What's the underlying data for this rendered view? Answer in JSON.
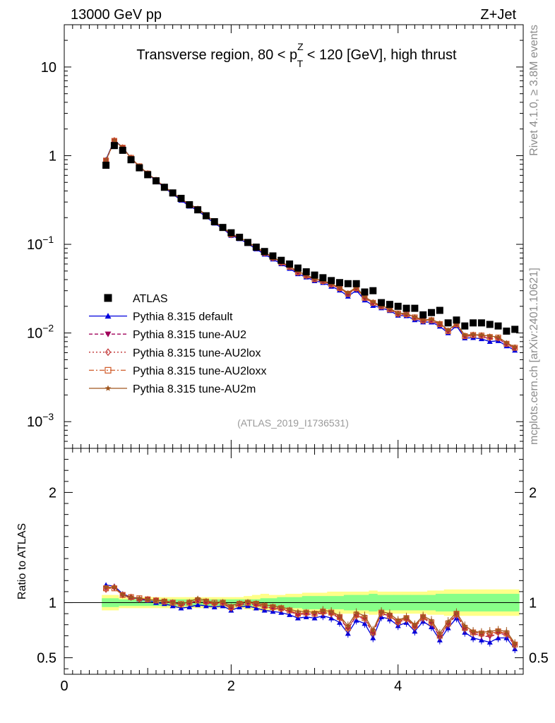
{
  "header": {
    "left": "13000 GeV pp",
    "right": "Z+Jet"
  },
  "side": {
    "rivet": "Rivet 4.1.0, ≥ 3.8M events",
    "mcplots": "mcplots.cern.ch [arXiv:2401.10621]"
  },
  "chart_data": [
    {
      "type": "scatter",
      "panel": "main",
      "title": "Transverse region, 80 < pT^Z < 120 [GeV], high thrust",
      "title_parts": {
        "a": "Transverse region, 80 < p",
        "sup": "Z",
        "sub": "T",
        "b": " < 120 [GeV], high thrust"
      },
      "watermark": "(ATLAS_2019_I1736531)",
      "yscale": "log",
      "ylim": [
        0.0005,
        30
      ],
      "xlim": [
        0,
        5.5
      ],
      "ytick_labels": [
        {
          "v": 10,
          "base": "10",
          "exp": ""
        },
        {
          "v": 1,
          "base": "1",
          "exp": ""
        },
        {
          "v": 0.1,
          "base": "10",
          "exp": "−1"
        },
        {
          "v": 0.01,
          "base": "10",
          "exp": "−2"
        },
        {
          "v": 0.001,
          "base": "10",
          "exp": "−3"
        }
      ],
      "x": [
        0.5,
        0.6,
        0.7,
        0.8,
        0.9,
        1.0,
        1.1,
        1.2,
        1.3,
        1.4,
        1.5,
        1.6,
        1.7,
        1.8,
        1.9,
        2.0,
        2.1,
        2.2,
        2.3,
        2.4,
        2.5,
        2.6,
        2.7,
        2.8,
        2.9,
        3.0,
        3.1,
        3.2,
        3.3,
        3.4,
        3.5,
        3.6,
        3.7,
        3.8,
        3.9,
        4.0,
        4.1,
        4.2,
        4.3,
        4.4,
        4.5,
        4.6,
        4.7,
        4.8,
        4.9,
        5.0,
        5.1,
        5.2,
        5.3,
        5.4
      ],
      "series": [
        {
          "name": "ATLAS",
          "marker": "square",
          "color": "#000000",
          "values": [
            0.78,
            1.3,
            1.15,
            0.9,
            0.73,
            0.61,
            0.52,
            0.44,
            0.38,
            0.33,
            0.28,
            0.245,
            0.21,
            0.18,
            0.155,
            0.135,
            0.12,
            0.105,
            0.093,
            0.083,
            0.074,
            0.066,
            0.06,
            0.054,
            0.049,
            0.045,
            0.042,
            0.039,
            0.037,
            0.036,
            0.036,
            0.029,
            0.03,
            0.022,
            0.021,
            0.02,
            0.019,
            0.019,
            0.016,
            0.017,
            0.018,
            0.013,
            0.014,
            0.012,
            0.013,
            0.013,
            0.0125,
            0.012,
            0.0105,
            0.011
          ]
        },
        {
          "name": "Pythia 8.315 default",
          "marker": "triangle-up",
          "color": "#0000dd",
          "linestyle": "solid",
          "ratio": [
            1.16,
            1.15,
            1.08,
            1.05,
            1.03,
            1.02,
            1.0,
            0.99,
            0.97,
            0.95,
            0.96,
            0.98,
            0.97,
            0.96,
            0.97,
            0.93,
            0.96,
            0.97,
            0.95,
            0.93,
            0.92,
            0.91,
            0.89,
            0.86,
            0.87,
            0.86,
            0.88,
            0.86,
            0.82,
            0.72,
            0.84,
            0.81,
            0.68,
            0.87,
            0.85,
            0.79,
            0.82,
            0.74,
            0.83,
            0.78,
            0.66,
            0.77,
            0.86,
            0.73,
            0.68,
            0.66,
            0.64,
            0.68,
            0.68,
            0.58
          ]
        },
        {
          "name": "Pythia 8.315 tune-AU2",
          "marker": "triangle-down",
          "color": "#a0005a",
          "linestyle": "dashed",
          "ratio": [
            1.13,
            1.13,
            1.07,
            1.04,
            1.03,
            1.03,
            1.02,
            1.01,
            1.0,
            0.98,
            0.99,
            1.02,
            1.0,
            0.99,
            0.99,
            0.95,
            0.98,
            0.99,
            0.98,
            0.96,
            0.95,
            0.94,
            0.92,
            0.89,
            0.9,
            0.89,
            0.91,
            0.9,
            0.86,
            0.76,
            0.88,
            0.85,
            0.72,
            0.9,
            0.88,
            0.82,
            0.85,
            0.78,
            0.86,
            0.81,
            0.69,
            0.8,
            0.89,
            0.76,
            0.72,
            0.7,
            0.69,
            0.72,
            0.71,
            0.61
          ]
        },
        {
          "name": "Pythia 8.315 tune-AU2lox",
          "marker": "diamond-open",
          "color": "#c03030",
          "linestyle": "dotted",
          "ratio": [
            1.12,
            1.14,
            1.07,
            1.05,
            1.03,
            1.03,
            1.02,
            1.01,
            1.0,
            0.98,
            1.0,
            1.02,
            1.0,
            0.99,
            1.0,
            0.95,
            0.99,
            1.0,
            0.98,
            0.96,
            0.95,
            0.94,
            0.93,
            0.89,
            0.9,
            0.9,
            0.91,
            0.9,
            0.86,
            0.77,
            0.88,
            0.86,
            0.73,
            0.91,
            0.88,
            0.82,
            0.85,
            0.78,
            0.86,
            0.82,
            0.7,
            0.81,
            0.89,
            0.77,
            0.73,
            0.72,
            0.72,
            0.73,
            0.72,
            0.62
          ]
        },
        {
          "name": "Pythia 8.315 tune-AU2loxx",
          "marker": "square-open",
          "color": "#d05a28",
          "linestyle": "dashdot",
          "ratio": [
            1.13,
            1.13,
            1.07,
            1.05,
            1.04,
            1.03,
            1.02,
            1.01,
            1.0,
            0.99,
            1.0,
            1.02,
            1.01,
            1.0,
            1.0,
            0.96,
            0.99,
            1.0,
            0.99,
            0.97,
            0.96,
            0.95,
            0.93,
            0.9,
            0.91,
            0.9,
            0.92,
            0.91,
            0.87,
            0.77,
            0.89,
            0.86,
            0.73,
            0.91,
            0.88,
            0.83,
            0.86,
            0.79,
            0.87,
            0.82,
            0.7,
            0.81,
            0.9,
            0.77,
            0.73,
            0.72,
            0.72,
            0.74,
            0.72,
            0.62
          ]
        },
        {
          "name": "Pythia 8.315 tune-AU2m",
          "marker": "star",
          "color": "#a0561e",
          "linestyle": "solid",
          "ratio": [
            1.14,
            1.14,
            1.07,
            1.05,
            1.04,
            1.03,
            1.02,
            1.02,
            1.0,
            0.99,
            1.01,
            1.04,
            1.02,
            1.0,
            1.01,
            0.97,
            1.0,
            1.01,
            1.0,
            0.98,
            0.97,
            0.96,
            0.94,
            0.92,
            0.92,
            0.91,
            0.93,
            0.92,
            0.88,
            0.79,
            0.91,
            0.88,
            0.75,
            0.92,
            0.9,
            0.84,
            0.87,
            0.8,
            0.88,
            0.84,
            0.72,
            0.83,
            0.91,
            0.79,
            0.74,
            0.73,
            0.74,
            0.75,
            0.74,
            0.63
          ]
        }
      ]
    },
    {
      "type": "scatter",
      "panel": "ratio",
      "ylabel": "Ratio to ATLAS",
      "ylim": [
        0.35,
        2.4
      ],
      "xlim": [
        0,
        5.5
      ],
      "yticks": [
        0.5,
        1,
        2
      ],
      "ytick_labels": [
        "0.5",
        "1",
        "2"
      ],
      "xticks": [
        0,
        2,
        4
      ],
      "xtick_labels": [
        "0",
        "2",
        "4"
      ],
      "band_green_halfwidth": [
        0.04,
        0.04,
        0.03,
        0.03,
        0.03,
        0.03,
        0.03,
        0.03,
        0.03,
        0.03,
        0.03,
        0.03,
        0.03,
        0.03,
        0.03,
        0.03,
        0.03,
        0.03,
        0.03,
        0.04,
        0.04,
        0.05,
        0.05,
        0.05,
        0.06,
        0.06,
        0.06,
        0.06,
        0.06,
        0.07,
        0.07,
        0.07,
        0.08,
        0.07,
        0.07,
        0.07,
        0.07,
        0.07,
        0.07,
        0.07,
        0.08,
        0.08,
        0.08,
        0.08,
        0.08,
        0.08,
        0.08,
        0.08,
        0.08,
        0.08
      ],
      "band_yellow_halfwidth": [
        0.07,
        0.07,
        0.05,
        0.05,
        0.05,
        0.05,
        0.05,
        0.05,
        0.05,
        0.05,
        0.05,
        0.05,
        0.05,
        0.05,
        0.05,
        0.05,
        0.05,
        0.06,
        0.07,
        0.08,
        0.07,
        0.07,
        0.08,
        0.08,
        0.09,
        0.09,
        0.09,
        0.1,
        0.1,
        0.1,
        0.1,
        0.1,
        0.11,
        0.1,
        0.1,
        0.1,
        0.1,
        0.1,
        0.1,
        0.11,
        0.11,
        0.12,
        0.12,
        0.12,
        0.12,
        0.12,
        0.12,
        0.12,
        0.12,
        0.12
      ]
    }
  ]
}
